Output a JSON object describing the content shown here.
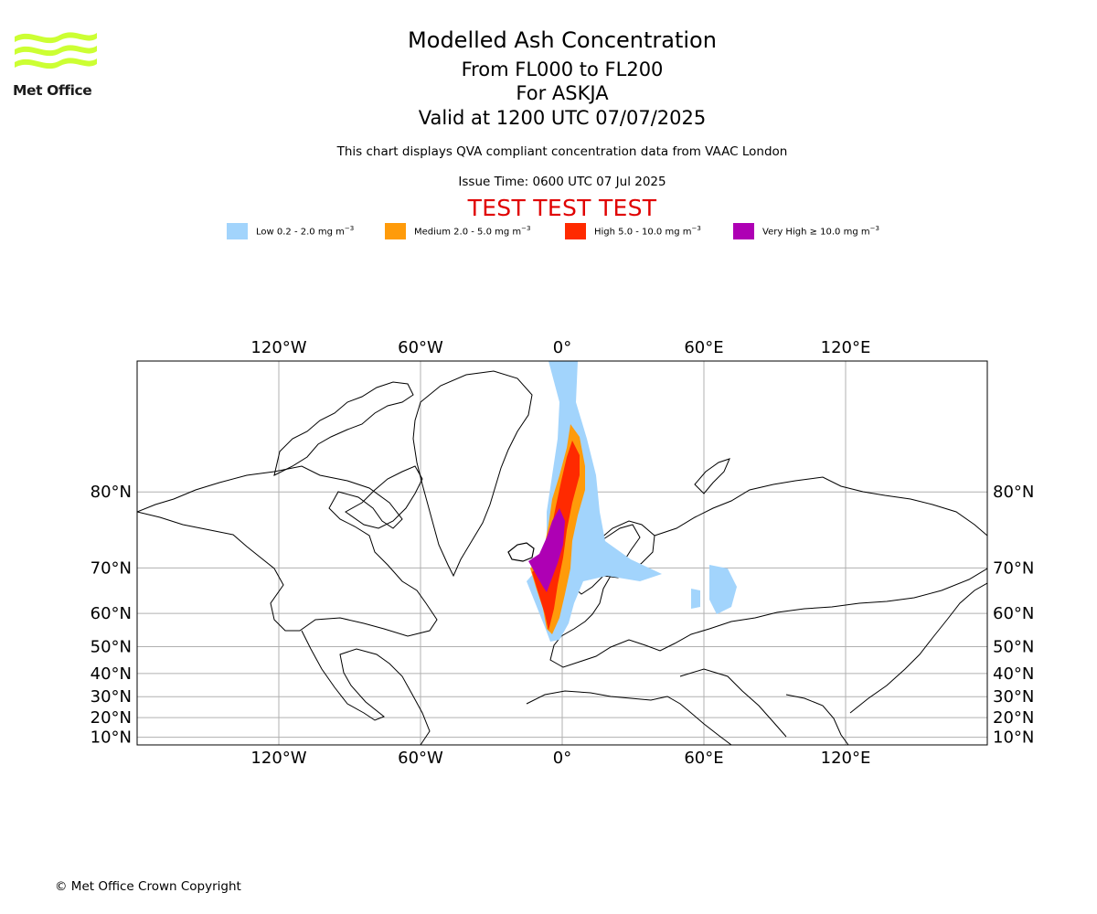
{
  "logo": {
    "text": "Met Office",
    "color": "#ccff33"
  },
  "header": {
    "title": "Modelled Ash Concentration",
    "levels": "From FL000 to FL200",
    "volcano": "For ASKJA",
    "valid": "Valid at 1200 UTC 07/07/2025",
    "description": "This chart displays QVA compliant concentration data from VAAC London",
    "issue": "Issue Time: 0600 UTC 07 Jul 2025",
    "banner": "TEST TEST TEST"
  },
  "legend": [
    {
      "label": "Low 0.2 - 2.0 mg m",
      "color": "#a2d4fc"
    },
    {
      "label": "Medium 2.0 - 5.0 mg m",
      "color": "#ff9b0a"
    },
    {
      "label": "High 5.0 - 10.0 mg m",
      "color": "#ff2a00"
    },
    {
      "label": "Very High ≥ 10.0 mg m",
      "color": "#ae00b4"
    }
  ],
  "legend_unit_exponent": "−3",
  "map": {
    "lon_labels": [
      "120°W",
      "60°W",
      "0°",
      "60°E",
      "120°E"
    ],
    "lon_values": [
      -120,
      -60,
      0,
      60,
      120
    ],
    "lat_labels": [
      "80°N",
      "70°N",
      "60°N",
      "50°N",
      "40°N",
      "30°N",
      "20°N",
      "10°N"
    ],
    "lat_values": [
      80,
      70,
      60,
      50,
      40,
      30,
      20,
      10
    ],
    "lon_range": [
      -180,
      180
    ],
    "lat_range": [
      6,
      87
    ],
    "projection": "mercator",
    "gridlines": true
  },
  "footer": {
    "copyright": "© Met Office Crown Copyright"
  }
}
